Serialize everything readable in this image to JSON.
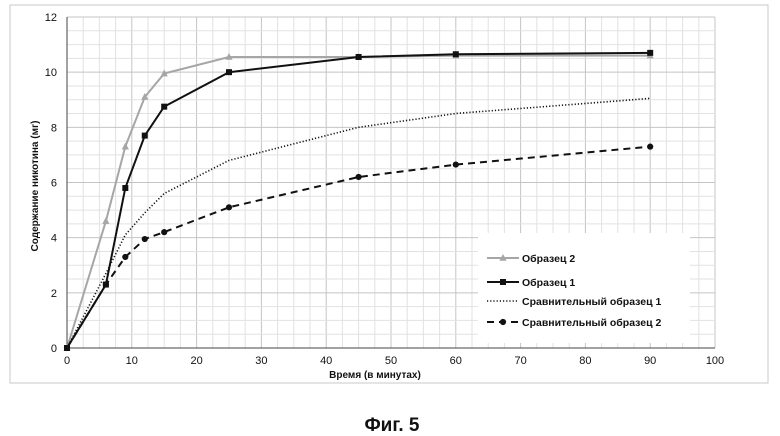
{
  "chart_data": {
    "type": "line",
    "xlabel": "Время (в минутах)",
    "ylabel": "Содержание никотина (мг)",
    "xlim": [
      0,
      100
    ],
    "ylim": [
      0,
      12
    ],
    "x_ticks": [
      0,
      10,
      20,
      30,
      40,
      50,
      60,
      70,
      80,
      90,
      100
    ],
    "y_ticks": [
      0,
      2,
      4,
      6,
      8,
      10,
      12
    ],
    "grid": true,
    "legend_position": "bottom-right",
    "series": [
      {
        "name": "Образец 2",
        "color": "#a6a6a6",
        "line_style": "solid",
        "marker": "triangle",
        "x": [
          0,
          6,
          9,
          12,
          15,
          25,
          45,
          60,
          90
        ],
        "y": [
          0,
          4.6,
          7.3,
          9.1,
          9.95,
          10.55,
          10.55,
          10.6,
          10.6
        ]
      },
      {
        "name": "Образец 1",
        "color": "#111111",
        "line_style": "solid",
        "marker": "square",
        "x": [
          0,
          6,
          9,
          12,
          15,
          25,
          45,
          60,
          90
        ],
        "y": [
          0,
          2.3,
          5.8,
          7.7,
          8.75,
          10.0,
          10.55,
          10.65,
          10.7
        ]
      },
      {
        "name": "Сравнительный образец 1",
        "color": "#111111",
        "line_style": "dotted",
        "marker": "none",
        "x": [
          0,
          6,
          9,
          12,
          15,
          25,
          45,
          60,
          90
        ],
        "y": [
          0,
          2.7,
          4.1,
          4.9,
          5.6,
          6.8,
          8.0,
          8.5,
          9.05
        ]
      },
      {
        "name": "Сравнительный образец 2",
        "color": "#111111",
        "line_style": "dashed",
        "marker": "circle",
        "x": [
          0,
          6,
          9,
          12,
          15,
          25,
          45,
          60,
          90
        ],
        "y": [
          0,
          2.3,
          3.3,
          3.95,
          4.2,
          5.1,
          6.2,
          6.65,
          7.3
        ]
      }
    ]
  },
  "caption": "Фиг. 5"
}
